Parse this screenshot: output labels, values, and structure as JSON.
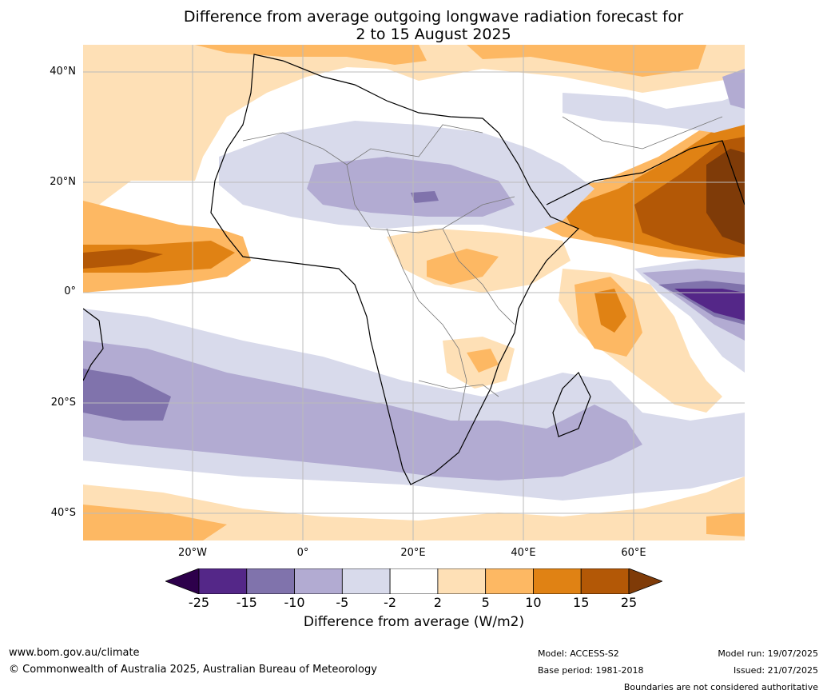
{
  "title_line1": "Difference from average outgoing longwave radiation forecast for",
  "title_line2": "2 to 15 August 2025",
  "lat_labels": [
    "40°N",
    "20°N",
    "0°",
    "20°S",
    "40°S"
  ],
  "lon_labels": [
    "20°W",
    "0°",
    "20°E",
    "40°E",
    "60°E"
  ],
  "colorbar": {
    "ticks": [
      "-25",
      "-15",
      "-10",
      "-5",
      "-2",
      "2",
      "5",
      "10",
      "15",
      "25"
    ],
    "colors": [
      "#2d004b",
      "#542788",
      "#8073ac",
      "#b2abd2",
      "#d8daeb",
      "#ffffff",
      "#fee0b6",
      "#fdb863",
      "#e08214",
      "#b35806",
      "#7f3b08"
    ],
    "label": "Difference from average (W/m2)"
  },
  "footer": {
    "website": "www.bom.gov.au/climate",
    "copyright": "© Commonwealth of Australia 2025, Australian Bureau of Meteorology",
    "model": "Model: ACCESS-S2",
    "base_period": "Base period: 1981-2018",
    "model_run": "Model run: 19/07/2025",
    "issued": "Issued: 21/07/2025",
    "disclaimer": "Boundaries are not considered authoritative"
  }
}
